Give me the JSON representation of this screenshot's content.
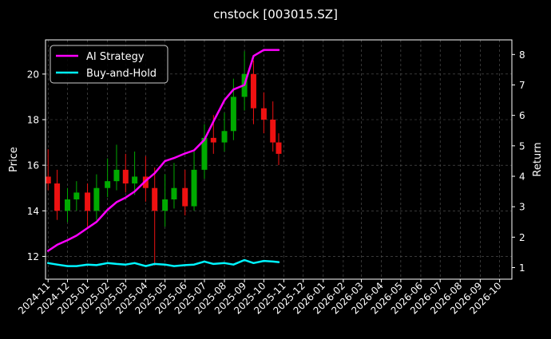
{
  "chart_data": {
    "type": "line",
    "title": "cnstock [003015.SZ]",
    "ylabel_left": "Price",
    "ylabel_right": "Return",
    "x_ticks": [
      "2024-11",
      "2024-12",
      "2025-01",
      "2025-02",
      "2025-03",
      "2025-04",
      "2025-05",
      "2025-06",
      "2025-07",
      "2025-08",
      "2025-09",
      "2025-10",
      "2025-11",
      "2025-12",
      "2026-01",
      "2026-02",
      "2026-03",
      "2026-04",
      "2026-05",
      "2026-06",
      "2026-07",
      "2026-08",
      "2026-09",
      "2026-10"
    ],
    "y_left_ticks": [
      12,
      14,
      16,
      18,
      20
    ],
    "y_right_ticks": [
      1,
      2,
      3,
      4,
      5,
      6,
      7,
      8
    ],
    "xlim": [
      "2024-10-28",
      "2026-10-20"
    ],
    "ylim_left": [
      11.0,
      21.5
    ],
    "ylim_right": [
      0.62,
      8.48
    ],
    "grid": true,
    "legend_position": "top-left",
    "colors": {
      "background": "#000000",
      "grid": "#5a5a5a",
      "ai_strategy": "#ff00ff",
      "buy_and_hold": "#00f5ff",
      "candle_up": "#00aa00",
      "candle_down": "#ee1111"
    },
    "series": [
      {
        "name": "AI Strategy",
        "axis": "right",
        "x": [
          "2024-11-01",
          "2024-11-15",
          "2024-12-01",
          "2024-12-15",
          "2025-01-01",
          "2025-01-15",
          "2025-02-01",
          "2025-02-15",
          "2025-03-01",
          "2025-03-15",
          "2025-04-01",
          "2025-04-15",
          "2025-05-01",
          "2025-05-15",
          "2025-06-01",
          "2025-06-15",
          "2025-07-01",
          "2025-07-15",
          "2025-08-01",
          "2025-08-15",
          "2025-09-01",
          "2025-09-15",
          "2025-10-01",
          "2025-10-15",
          "2025-10-24"
        ],
        "values": [
          1.55,
          1.75,
          1.9,
          2.05,
          2.3,
          2.5,
          2.9,
          3.15,
          3.3,
          3.5,
          3.85,
          4.1,
          4.5,
          4.6,
          4.75,
          4.85,
          5.2,
          5.8,
          6.5,
          6.85,
          7.0,
          7.95,
          8.15,
          8.15,
          8.15
        ]
      },
      {
        "name": "Buy-and-Hold",
        "axis": "right",
        "x": [
          "2024-11-01",
          "2024-11-15",
          "2024-12-01",
          "2024-12-15",
          "2025-01-01",
          "2025-01-15",
          "2025-02-01",
          "2025-02-15",
          "2025-03-01",
          "2025-03-15",
          "2025-04-01",
          "2025-04-15",
          "2025-05-01",
          "2025-05-15",
          "2025-06-01",
          "2025-06-15",
          "2025-07-01",
          "2025-07-15",
          "2025-08-01",
          "2025-08-15",
          "2025-09-01",
          "2025-09-15",
          "2025-10-01",
          "2025-10-15",
          "2025-10-24"
        ],
        "values": [
          1.15,
          1.1,
          1.05,
          1.05,
          1.1,
          1.08,
          1.15,
          1.12,
          1.1,
          1.15,
          1.05,
          1.12,
          1.1,
          1.05,
          1.08,
          1.1,
          1.2,
          1.12,
          1.15,
          1.1,
          1.25,
          1.15,
          1.22,
          1.2,
          1.18
        ]
      }
    ],
    "price_candles": {
      "axis": "left",
      "x": [
        "2024-11-01",
        "2024-11-15",
        "2024-12-01",
        "2024-12-15",
        "2025-01-01",
        "2025-01-15",
        "2025-02-01",
        "2025-02-15",
        "2025-03-01",
        "2025-03-15",
        "2025-04-01",
        "2025-04-15",
        "2025-05-01",
        "2025-05-15",
        "2025-06-01",
        "2025-06-15",
        "2025-07-01",
        "2025-07-15",
        "2025-08-01",
        "2025-08-15",
        "2025-09-01",
        "2025-09-15",
        "2025-10-01",
        "2025-10-15",
        "2025-10-24"
      ],
      "open": [
        15.5,
        15.2,
        14.0,
        14.5,
        14.8,
        14.0,
        15.0,
        15.3,
        15.8,
        15.2,
        15.5,
        15.0,
        14.0,
        14.5,
        15.0,
        14.2,
        15.8,
        17.2,
        17.0,
        17.5,
        19.0,
        20.0,
        18.5,
        18.0,
        17.0
      ],
      "close": [
        15.2,
        14.0,
        14.5,
        14.8,
        14.0,
        15.0,
        15.3,
        15.8,
        15.2,
        15.5,
        15.0,
        14.0,
        14.5,
        15.0,
        14.2,
        15.8,
        17.2,
        17.0,
        17.5,
        19.0,
        20.0,
        18.5,
        18.0,
        17.0,
        16.5
      ],
      "high": [
        16.7,
        15.8,
        15.0,
        15.3,
        15.2,
        15.6,
        16.3,
        16.9,
        16.5,
        16.6,
        16.4,
        15.9,
        15.6,
        16.1,
        15.8,
        16.6,
        17.8,
        18.2,
        18.3,
        19.8,
        21.0,
        20.6,
        19.2,
        18.8,
        17.4
      ],
      "low": [
        14.9,
        13.6,
        13.5,
        14.0,
        13.3,
        13.6,
        14.6,
        14.9,
        14.8,
        14.7,
        14.4,
        11.6,
        13.3,
        14.1,
        13.8,
        14.0,
        15.4,
        16.5,
        16.6,
        17.1,
        18.4,
        17.8,
        17.4,
        16.6,
        16.0
      ]
    }
  }
}
